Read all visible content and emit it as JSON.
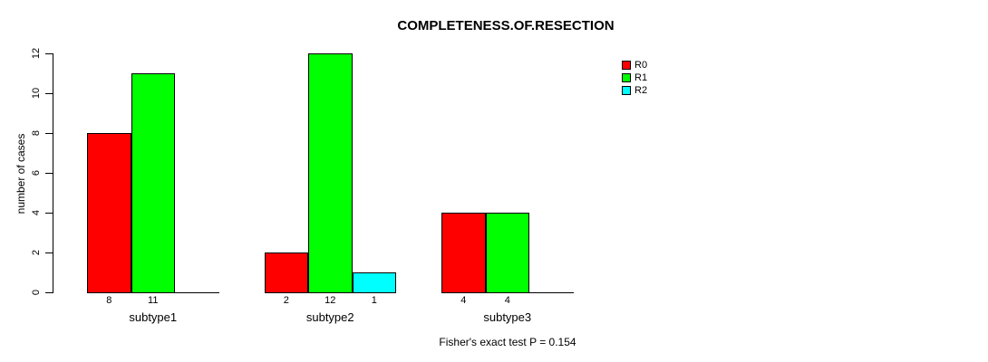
{
  "figure": {
    "background": "#ffffff",
    "text_color": "#000000",
    "axis_color": "#000000"
  },
  "chart_data": {
    "type": "bar",
    "grouped": true,
    "title": "COMPLETENESS.OF.RESECTION",
    "categories": [
      "subtype1",
      "subtype2",
      "subtype3"
    ],
    "series": [
      {
        "name": "R0",
        "color": "#ff0000",
        "values": [
          8,
          2,
          4
        ]
      },
      {
        "name": "R1",
        "color": "#00ff00",
        "values": [
          11,
          12,
          4
        ]
      },
      {
        "name": "R2",
        "color": "#00ffff",
        "values": [
          0,
          1,
          0
        ]
      }
    ],
    "xlabel": "",
    "ylabel": "number of cases",
    "ylim": [
      0,
      12
    ],
    "yticks": [
      0,
      2,
      4,
      6,
      8,
      10,
      12
    ],
    "grid": false,
    "legend_position": "top-right",
    "bar_value_labels": {
      "show": true,
      "hide_zero": true
    },
    "annotation": "Fisher's exact test P = 0.154"
  }
}
